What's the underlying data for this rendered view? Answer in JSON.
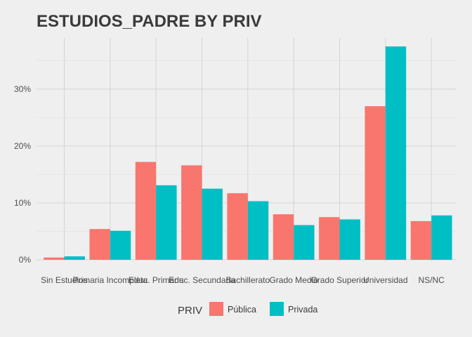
{
  "chart_data": {
    "type": "bar",
    "title": "ESTUDIOS_PADRE BY PRIV",
    "xlabel": "",
    "ylabel": "",
    "categories": [
      "Sin Estudios",
      "Primaria Incompleta",
      "Educ. Primaria",
      "Educ. Secundaria",
      "Bachillerato",
      "Grado Medio",
      "Grado Superior",
      "Universidad",
      "NS/NC"
    ],
    "series": [
      {
        "name": "Pública",
        "color": "#f8766d",
        "values": [
          0.4,
          5.4,
          17.2,
          16.6,
          11.7,
          8.0,
          7.5,
          27.0,
          6.8
        ]
      },
      {
        "name": "Privada",
        "color": "#00bfc4",
        "values": [
          0.6,
          5.1,
          13.1,
          12.5,
          10.3,
          6.1,
          7.1,
          37.5,
          7.8
        ]
      }
    ],
    "ylim": [
      0,
      39
    ],
    "yticks": [
      0,
      10,
      20,
      30
    ],
    "ytick_labels": [
      "0%",
      "10%",
      "20%",
      "30%"
    ],
    "grid": true,
    "legend": {
      "title": "PRIV",
      "position": "bottom"
    }
  }
}
